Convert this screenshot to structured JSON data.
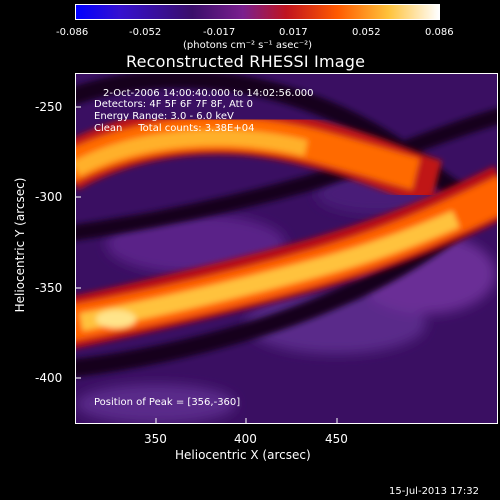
{
  "colorbar": {
    "ticks": [
      "-0.086",
      "-0.052",
      "-0.017",
      "0.017",
      "0.052",
      "0.086"
    ],
    "units": "(photons cm⁻² s⁻¹ asec⁻²)"
  },
  "title": "Reconstructed RHESSI Image",
  "annotations": {
    "time": "2-Oct-2006 14:00:40.000 to 14:02:56.000",
    "detectors": "Detectors: 4F 5F 6F 7F 8F, Att 0",
    "energy": "Energy Range: 3.0 - 6.0 keV",
    "clean": "Clean     Total counts: 3.38E+04",
    "peak": "Position of Peak = [356,-360]"
  },
  "axes": {
    "xlabel": "Heliocentric X (arcsec)",
    "ylabel": "Heliocentric Y (arcsec)",
    "xticks": [
      "350",
      "400",
      "450"
    ],
    "yticks": [
      "-250",
      "-300",
      "-350",
      "-400"
    ]
  },
  "footer": "15-Jul-2013 17:32",
  "colors": {
    "background": "#000000",
    "frame": "#ffffff",
    "colormap": [
      "#0000ff",
      "#2a0a6e",
      "#4a1a8a",
      "#7a2a9a",
      "#cc1a1a",
      "#ff7a00",
      "#ffd24a",
      "#ffffff"
    ]
  }
}
